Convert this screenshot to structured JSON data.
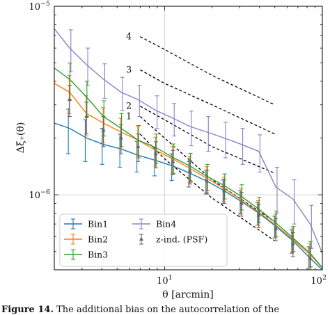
{
  "chart_data": {
    "type": "line",
    "xscale": "log",
    "yscale": "log",
    "xlim": [
      2,
      100
    ],
    "ylim": [
      4e-07,
      1e-05
    ],
    "xlabel": "θ [arcmin]",
    "ylabel": "Δξ₊(θ)",
    "x_ticks": [
      {
        "value": 10,
        "mantissa": "10",
        "exponent": "1"
      },
      {
        "value": 100,
        "mantissa": "10",
        "exponent": "2"
      }
    ],
    "y_ticks": [
      {
        "value": 1e-06,
        "mantissa": "10",
        "exponent": "−6"
      },
      {
        "value": 1e-05,
        "mantissa": "10",
        "exponent": "−5"
      }
    ],
    "reference_lines": {
      "x": 10,
      "y": 1e-06
    },
    "series": [
      {
        "name": "Bin1",
        "color": "#1f77b4",
        "x": [
          2.0,
          2.5,
          3.2,
          4.1,
          5.3,
          6.8,
          8.8,
          11.3,
          14.5,
          18.6,
          23.9,
          30.7,
          39.5,
          50.7,
          65.1,
          83.7,
          100
        ],
        "y": [
          2.4e-06,
          2.25e-06,
          2e-06,
          1.85e-06,
          1.75e-06,
          1.62e-06,
          1.52e-06,
          1.42e-06,
          1.3e-06,
          1.18e-06,
          1.05e-06,
          9.2e-07,
          8e-07,
          6.8e-07,
          5.7e-07,
          4.6e-07,
          4e-07
        ],
        "err": [
          0,
          6e-07,
          5e-07,
          4e-07,
          3.5e-07,
          3e-07,
          2.6e-07,
          2.3e-07,
          2e-07,
          1.7e-07,
          1.5e-07,
          1.3e-07,
          1.1e-07,
          9e-08,
          8e-08,
          7e-08,
          0
        ]
      },
      {
        "name": "Bin2",
        "color": "#ff7f0e",
        "x": [
          2.0,
          2.5,
          3.2,
          4.1,
          5.3,
          6.8,
          8.8,
          11.3,
          14.5,
          18.6,
          23.9,
          30.7,
          39.5,
          50.7,
          65.1,
          83.7,
          100
        ],
        "y": [
          3.9e-06,
          3.5e-06,
          2.7e-06,
          2.4e-06,
          2.15e-06,
          1.95e-06,
          1.72e-06,
          1.55e-06,
          1.38e-06,
          1.22e-06,
          1.08e-06,
          9.4e-07,
          8.1e-07,
          6.9e-07,
          5.8e-07,
          4.8e-07,
          4.1e-07
        ],
        "err": [
          0,
          8e-07,
          6.5e-07,
          5e-07,
          4e-07,
          3.5e-07,
          3e-07,
          2.6e-07,
          2.2e-07,
          1.9e-07,
          1.6e-07,
          1.4e-07,
          1.2e-07,
          1e-07,
          8.5e-08,
          7e-08,
          0
        ]
      },
      {
        "name": "Bin3",
        "color": "#2ca02c",
        "x": [
          2.0,
          2.5,
          3.2,
          4.1,
          5.3,
          6.8,
          8.8,
          11.3,
          14.5,
          18.6,
          23.9,
          30.7,
          39.5,
          50.7,
          65.1,
          83.7,
          100
        ],
        "y": [
          4.7e-06,
          4.1e-06,
          3.3e-06,
          2.6e-06,
          2.25e-06,
          1.95e-06,
          1.78e-06,
          1.58e-06,
          1.42e-06,
          1.25e-06,
          1.12e-06,
          9.8e-07,
          8.4e-07,
          7.1e-07,
          5.9e-07,
          4.9e-07,
          4.1e-07
        ],
        "err": [
          0,
          9e-07,
          7e-07,
          5.5e-07,
          4.5e-07,
          3.8e-07,
          3.2e-07,
          2.8e-07,
          2.4e-07,
          2e-07,
          1.7e-07,
          1.5e-07,
          1.3e-07,
          1.1e-07,
          9e-08,
          7.5e-08,
          0
        ]
      },
      {
        "name": "Bin4",
        "color": "#8c7fc9",
        "x": [
          2.0,
          2.5,
          3.2,
          4.1,
          5.3,
          6.8,
          8.8,
          11.3,
          14.5,
          18.6,
          23.9,
          30.7,
          39.5,
          50.7,
          65.1,
          83.7,
          100
        ],
        "y": [
          7.6e-06,
          6e-06,
          4.9e-06,
          4.1e-06,
          3.5e-06,
          3.2e-06,
          2.8e-06,
          2.55e-06,
          2.3e-06,
          2.15e-06,
          2e-06,
          1.85e-06,
          1.7e-06,
          1.1e-06,
          9.5e-07,
          7e-07,
          4.9e-07
        ],
        "err": [
          0,
          1.5e-06,
          1.1e-06,
          8.5e-07,
          7e-07,
          6e-07,
          5.5e-07,
          5e-07,
          4.8e-07,
          4.5e-07,
          4.3e-07,
          4e-07,
          3.8e-07,
          3e-07,
          2.5e-07,
          1.8e-07,
          0
        ]
      },
      {
        "name": "z-ind. (PSF)",
        "color": "#666666",
        "x": [
          2.5,
          3.2,
          4.1,
          5.3,
          6.8,
          8.8,
          11.3,
          14.5,
          18.6,
          23.9,
          30.7,
          39.5,
          50.7,
          65.1,
          83.7
        ],
        "y": [
          3.2e-06,
          2.6e-06,
          2.2e-06,
          2e-06,
          1.8e-06,
          1.65e-06,
          1.5e-06,
          1.33e-06,
          1.18e-06,
          1.05e-06,
          9e-07,
          7.8e-07,
          6.6e-07,
          5.5e-07,
          4.6e-07
        ],
        "err": [
          6e-07,
          5e-07,
          4e-07,
          3.5e-07,
          3e-07,
          2.6e-07,
          2.2e-07,
          1.9e-07,
          1.7e-07,
          1.5e-07,
          1.3e-07,
          1.1e-07,
          9e-08,
          8e-08,
          6e-08
        ]
      }
    ],
    "dashed_lines": [
      {
        "label": "4",
        "x": [
          7,
          10,
          20,
          50
        ],
        "y": [
          6.9e-06,
          5.9e-06,
          4.3e-06,
          3e-06
        ]
      },
      {
        "label": "3",
        "x": [
          7,
          10,
          20,
          50
        ],
        "y": [
          4.6e-06,
          3.9e-06,
          3e-06,
          2.1e-06
        ]
      },
      {
        "label": "2",
        "x": [
          7,
          10,
          20,
          50
        ],
        "y": [
          2.95e-06,
          2.5e-06,
          1.8e-06,
          1.3e-06
        ]
      },
      {
        "label": "1",
        "x": [
          7,
          10,
          20,
          50
        ],
        "y": [
          2.6e-06,
          2e-06,
          1.2e-06,
          7.2e-07
        ]
      },
      {
        "label": "",
        "x": [
          7,
          10,
          20,
          50
        ],
        "y": [
          2.1e-06,
          1.55e-06,
          9.6e-07,
          5.7e-07
        ]
      }
    ],
    "legend": {
      "placement": "lower-left",
      "entries": [
        "Bin1",
        "Bin2",
        "Bin3",
        "Bin4",
        "z-ind. (PSF)"
      ]
    }
  },
  "caption": {
    "bold": "Figure 14.",
    "rest": " The additional bias on the autocorrelation of the"
  }
}
